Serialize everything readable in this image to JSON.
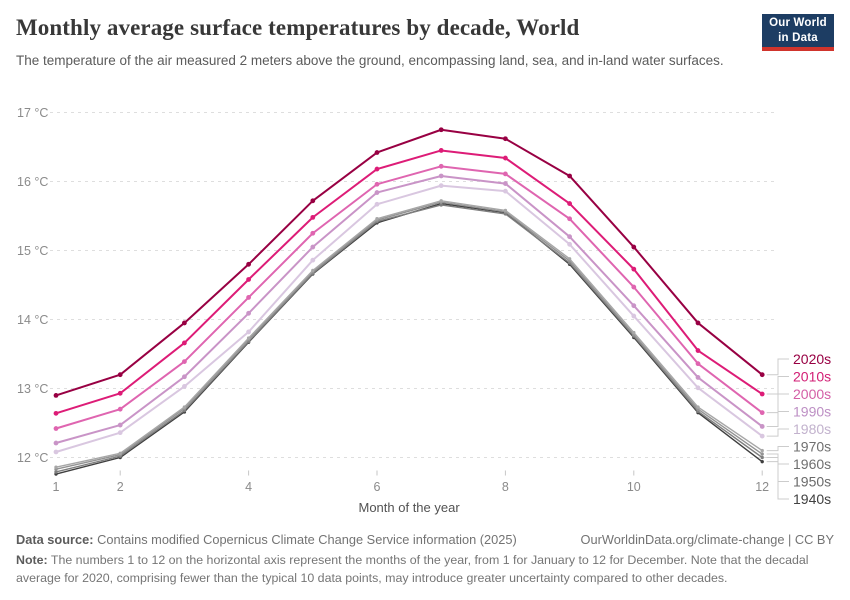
{
  "header": {
    "title": "Monthly average surface temperatures by decade, World",
    "logo": {
      "line1": "Our World",
      "line2": "in Data",
      "bg": "#1d3d63",
      "accent": "#d0342c"
    }
  },
  "subtitle": "The temperature of the air measured 2 meters above the ground, encompassing land, sea, and in-land water surfaces.",
  "chart_data": {
    "type": "line",
    "title": "Monthly average surface temperatures by decade, World",
    "xlabel": "Month of the year",
    "ylabel": "°C",
    "x": [
      1,
      2,
      3,
      4,
      5,
      6,
      7,
      8,
      9,
      10,
      11,
      12
    ],
    "x_axis": {
      "labeled_ticks": [
        1,
        2,
        4,
        6,
        8,
        10,
        12
      ]
    },
    "y_axis": {
      "tick_values": [
        12,
        13,
        14,
        15,
        16,
        17
      ],
      "tick_labels": [
        "12 °C",
        "13 °C",
        "14 °C",
        "15 °C",
        "16 °C",
        "17 °C"
      ],
      "range": [
        11.7,
        17.1
      ]
    },
    "grid": "horizontal-dashed",
    "legend_position": "right",
    "series": [
      {
        "name": "2020s",
        "color": "#980043",
        "label_color": "#980043",
        "values": [
          12.9,
          13.2,
          13.95,
          14.8,
          15.72,
          16.42,
          16.75,
          16.62,
          16.08,
          15.05,
          13.95,
          13.2
        ]
      },
      {
        "name": "2010s",
        "color": "#dd1c77",
        "label_color": "#d21e75",
        "values": [
          12.64,
          12.93,
          13.66,
          14.58,
          15.48,
          16.18,
          16.45,
          16.34,
          15.68,
          14.73,
          13.55,
          12.92
        ]
      },
      {
        "name": "2000s",
        "color": "#df65b0",
        "label_color": "#d45ea6",
        "values": [
          12.42,
          12.7,
          13.39,
          14.32,
          15.25,
          15.96,
          16.22,
          16.11,
          15.46,
          14.47,
          13.36,
          12.65
        ]
      },
      {
        "name": "1990s",
        "color": "#c994c7",
        "label_color": "#bd8fc4",
        "values": [
          12.21,
          12.47,
          13.17,
          14.09,
          15.05,
          15.84,
          16.08,
          15.97,
          15.2,
          14.2,
          13.16,
          12.45
        ]
      },
      {
        "name": "1980s",
        "color": "#d9c7e0",
        "label_color": "#c2b2cd",
        "values": [
          12.08,
          12.36,
          13.03,
          13.82,
          14.86,
          15.67,
          15.94,
          15.86,
          15.09,
          14.05,
          13.01,
          12.31
        ]
      },
      {
        "name": "1970s",
        "color": "#a7a7a7",
        "label_color": "#6f6f6f",
        "values": [
          11.86,
          12.06,
          12.73,
          13.73,
          14.71,
          15.46,
          15.72,
          15.58,
          14.88,
          13.81,
          12.73,
          12.1
        ]
      },
      {
        "name": "1960s",
        "color": "#939393",
        "label_color": "#6f6f6f",
        "values": [
          11.83,
          12.04,
          12.71,
          13.71,
          14.69,
          15.44,
          15.7,
          15.56,
          14.85,
          13.78,
          12.7,
          12.05
        ]
      },
      {
        "name": "1950s",
        "color": "#7e7e7e",
        "label_color": "#6a6a6a",
        "values": [
          11.79,
          12.02,
          12.68,
          13.68,
          14.67,
          15.42,
          15.66,
          15.53,
          14.82,
          13.76,
          12.67,
          12.0
        ]
      },
      {
        "name": "1940s",
        "color": "#3f3f3f",
        "label_color": "#414141",
        "values": [
          11.76,
          12.0,
          12.66,
          13.67,
          14.66,
          15.4,
          15.68,
          15.55,
          14.8,
          13.74,
          12.65,
          11.94
        ]
      }
    ]
  },
  "footer": {
    "datasource_label": "Data source:",
    "datasource_text": "Contains modified Copernicus Climate Change Service information (2025)",
    "link": "OurWorldinData.org/climate-change | CC BY",
    "note_label": "Note:",
    "note_text": "The numbers 1 to 12 on the horizontal axis represent the months of the year, from 1 for January to 12 for December. Note that the decadal average for 2020, comprising fewer than the typical 10 data points, may introduce greater uncertainty compared to other decades."
  }
}
